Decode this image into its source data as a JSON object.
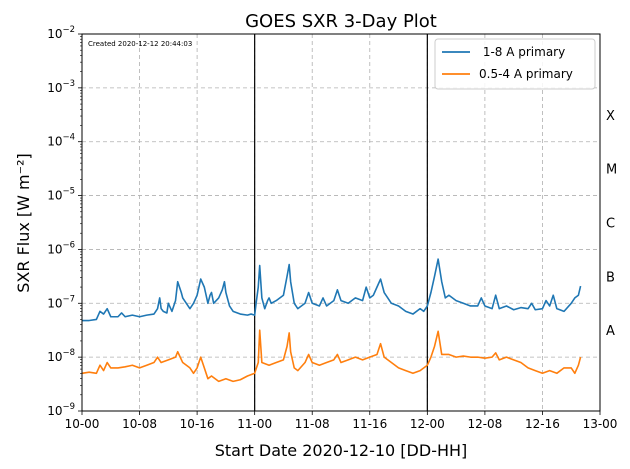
{
  "chart_data": {
    "type": "line",
    "title": "GOES SXR 3-Day Plot",
    "xlabel": "Start Date 2020-12-10 [DD-HH]",
    "ylabel": "SXR Flux [W m⁻²]",
    "created_note": "Created 2020-12-12 20:44:03",
    "yscale": "log",
    "xlim": [
      0,
      72
    ],
    "ylim_exponents": [
      -9,
      -2
    ],
    "grid": true,
    "legend_position": "top-right",
    "x_ticks": [
      {
        "x": 0,
        "label": "10-00"
      },
      {
        "x": 8,
        "label": "10-08"
      },
      {
        "x": 16,
        "label": "10-16"
      },
      {
        "x": 24,
        "label": "11-00"
      },
      {
        "x": 32,
        "label": "11-08"
      },
      {
        "x": 40,
        "label": "11-16"
      },
      {
        "x": 48,
        "label": "12-00"
      },
      {
        "x": 56,
        "label": "12-08"
      },
      {
        "x": 64,
        "label": "12-16"
      },
      {
        "x": 72,
        "label": "13-00"
      }
    ],
    "y_ticks": [
      {
        "exp": -9,
        "base": "10",
        "sup": "−9"
      },
      {
        "exp": -8,
        "base": "10",
        "sup": "−8"
      },
      {
        "exp": -7,
        "base": "10",
        "sup": "−7"
      },
      {
        "exp": -6,
        "base": "10",
        "sup": "−6"
      },
      {
        "exp": -5,
        "base": "10",
        "sup": "−5"
      },
      {
        "exp": -4,
        "base": "10",
        "sup": "−4"
      },
      {
        "exp": -3,
        "base": "10",
        "sup": "−3"
      },
      {
        "exp": -2,
        "base": "10",
        "sup": "−2"
      }
    ],
    "day_boundaries": [
      24,
      48
    ],
    "flare_classes": [
      {
        "label": "A",
        "exp": -7.5
      },
      {
        "label": "B",
        "exp": -6.5
      },
      {
        "label": "C",
        "exp": -5.5
      },
      {
        "label": "M",
        "exp": -4.5
      },
      {
        "label": "X",
        "exp": -3.5
      }
    ],
    "series": [
      {
        "name": " 1-8 A primary",
        "color": "#1f77b4",
        "points": [
          [
            0,
            -7.32
          ],
          [
            1,
            -7.32
          ],
          [
            2,
            -7.3
          ],
          [
            2.5,
            -7.15
          ],
          [
            3,
            -7.2
          ],
          [
            3.5,
            -7.1
          ],
          [
            4,
            -7.25
          ],
          [
            5,
            -7.25
          ],
          [
            5.5,
            -7.18
          ],
          [
            6,
            -7.25
          ],
          [
            7,
            -7.22
          ],
          [
            8,
            -7.25
          ],
          [
            9,
            -7.22
          ],
          [
            10,
            -7.2
          ],
          [
            10.5,
            -7.1
          ],
          [
            10.8,
            -6.9
          ],
          [
            11,
            -7.1
          ],
          [
            11.3,
            -7.15
          ],
          [
            11.8,
            -7.18
          ],
          [
            12,
            -7.0
          ],
          [
            12.5,
            -7.15
          ],
          [
            13,
            -6.95
          ],
          [
            13.3,
            -6.6
          ],
          [
            13.8,
            -6.8
          ],
          [
            14,
            -6.9
          ],
          [
            14.5,
            -7.0
          ],
          [
            15,
            -7.1
          ],
          [
            15.5,
            -7.0
          ],
          [
            16,
            -6.85
          ],
          [
            16.5,
            -6.55
          ],
          [
            17,
            -6.7
          ],
          [
            17.5,
            -7.0
          ],
          [
            17.8,
            -6.85
          ],
          [
            18,
            -6.8
          ],
          [
            18.3,
            -7.0
          ],
          [
            19,
            -6.9
          ],
          [
            19.5,
            -6.75
          ],
          [
            19.8,
            -6.6
          ],
          [
            20,
            -6.8
          ],
          [
            20.5,
            -7.05
          ],
          [
            21,
            -7.15
          ],
          [
            22,
            -7.2
          ],
          [
            23,
            -7.22
          ],
          [
            23.5,
            -7.2
          ],
          [
            24,
            -7.22
          ],
          [
            24.2,
            -7.0
          ],
          [
            24.5,
            -6.7
          ],
          [
            24.7,
            -6.3
          ],
          [
            25,
            -6.9
          ],
          [
            25.4,
            -7.1
          ],
          [
            25.8,
            -6.95
          ],
          [
            26,
            -6.9
          ],
          [
            26.3,
            -7.0
          ],
          [
            27,
            -6.95
          ],
          [
            28,
            -6.85
          ],
          [
            28.5,
            -6.5
          ],
          [
            28.8,
            -6.28
          ],
          [
            29,
            -6.6
          ],
          [
            29.5,
            -7.0
          ],
          [
            30,
            -7.1
          ],
          [
            31,
            -7.0
          ],
          [
            31.5,
            -6.8
          ],
          [
            32,
            -7.0
          ],
          [
            33,
            -7.05
          ],
          [
            33.5,
            -6.9
          ],
          [
            34,
            -7.05
          ],
          [
            35,
            -6.95
          ],
          [
            35.5,
            -6.75
          ],
          [
            36,
            -6.95
          ],
          [
            37,
            -7.0
          ],
          [
            38,
            -6.9
          ],
          [
            39,
            -6.95
          ],
          [
            39.5,
            -6.7
          ],
          [
            40,
            -6.9
          ],
          [
            40.5,
            -6.85
          ],
          [
            41,
            -6.7
          ],
          [
            41.5,
            -6.55
          ],
          [
            42,
            -6.8
          ],
          [
            43,
            -7.0
          ],
          [
            44,
            -7.05
          ],
          [
            45,
            -7.15
          ],
          [
            46,
            -7.2
          ],
          [
            47,
            -7.1
          ],
          [
            47.5,
            -7.15
          ],
          [
            48,
            -7.05
          ],
          [
            48.5,
            -6.8
          ],
          [
            49,
            -6.5
          ],
          [
            49.5,
            -6.18
          ],
          [
            50,
            -6.6
          ],
          [
            50.5,
            -6.9
          ],
          [
            51,
            -6.85
          ],
          [
            52,
            -6.95
          ],
          [
            53,
            -7.0
          ],
          [
            54,
            -7.05
          ],
          [
            55,
            -7.05
          ],
          [
            55.5,
            -6.9
          ],
          [
            56,
            -7.05
          ],
          [
            57,
            -7.1
          ],
          [
            57.5,
            -6.85
          ],
          [
            58,
            -7.1
          ],
          [
            59,
            -7.05
          ],
          [
            60,
            -7.12
          ],
          [
            61,
            -7.08
          ],
          [
            62,
            -7.1
          ],
          [
            62.5,
            -7.0
          ],
          [
            63,
            -7.12
          ],
          [
            64,
            -7.1
          ],
          [
            64.5,
            -6.95
          ],
          [
            65,
            -7.05
          ],
          [
            65.5,
            -6.85
          ],
          [
            66,
            -7.1
          ],
          [
            67,
            -7.15
          ],
          [
            68,
            -7.0
          ],
          [
            68.5,
            -6.9
          ],
          [
            69,
            -6.85
          ],
          [
            69.3,
            -6.68
          ]
        ]
      },
      {
        "name": "0.5-4 A primary",
        "color": "#ff7f0e",
        "points": [
          [
            0,
            -8.3
          ],
          [
            1,
            -8.28
          ],
          [
            2,
            -8.3
          ],
          [
            2.5,
            -8.15
          ],
          [
            3,
            -8.25
          ],
          [
            3.5,
            -8.1
          ],
          [
            4,
            -8.2
          ],
          [
            5,
            -8.2
          ],
          [
            6,
            -8.18
          ],
          [
            7,
            -8.15
          ],
          [
            8,
            -8.2
          ],
          [
            9,
            -8.15
          ],
          [
            10,
            -8.1
          ],
          [
            10.5,
            -8.0
          ],
          [
            11,
            -8.1
          ],
          [
            12,
            -8.05
          ],
          [
            13,
            -8.0
          ],
          [
            13.3,
            -7.9
          ],
          [
            14,
            -8.1
          ],
          [
            15,
            -8.2
          ],
          [
            15.5,
            -8.3
          ],
          [
            16,
            -8.2
          ],
          [
            16.5,
            -8.0
          ],
          [
            17,
            -8.2
          ],
          [
            17.5,
            -8.4
          ],
          [
            18,
            -8.35
          ],
          [
            19,
            -8.45
          ],
          [
            20,
            -8.4
          ],
          [
            21,
            -8.45
          ],
          [
            22,
            -8.42
          ],
          [
            23,
            -8.35
          ],
          [
            24,
            -8.3
          ],
          [
            24.5,
            -8.1
          ],
          [
            24.7,
            -7.5
          ],
          [
            25,
            -8.1
          ],
          [
            26,
            -8.15
          ],
          [
            27,
            -8.1
          ],
          [
            28,
            -8.05
          ],
          [
            28.5,
            -7.8
          ],
          [
            28.8,
            -7.55
          ],
          [
            29,
            -7.9
          ],
          [
            29.5,
            -8.2
          ],
          [
            30,
            -8.25
          ],
          [
            31,
            -8.1
          ],
          [
            31.5,
            -7.95
          ],
          [
            32,
            -8.1
          ],
          [
            33,
            -8.15
          ],
          [
            34,
            -8.1
          ],
          [
            35,
            -8.05
          ],
          [
            35.5,
            -7.95
          ],
          [
            36,
            -8.1
          ],
          [
            37,
            -8.05
          ],
          [
            38,
            -8.0
          ],
          [
            39,
            -8.05
          ],
          [
            40,
            -8.0
          ],
          [
            41,
            -7.95
          ],
          [
            41.5,
            -7.75
          ],
          [
            42,
            -8.0
          ],
          [
            43,
            -8.1
          ],
          [
            44,
            -8.2
          ],
          [
            45,
            -8.25
          ],
          [
            46,
            -8.3
          ],
          [
            47,
            -8.25
          ],
          [
            48,
            -8.15
          ],
          [
            48.5,
            -8.0
          ],
          [
            49,
            -7.8
          ],
          [
            49.5,
            -7.52
          ],
          [
            50,
            -7.95
          ],
          [
            51,
            -7.95
          ],
          [
            52,
            -8.0
          ],
          [
            53,
            -7.98
          ],
          [
            54,
            -8.0
          ],
          [
            55,
            -8.0
          ],
          [
            56,
            -8.02
          ],
          [
            57,
            -8.0
          ],
          [
            57.5,
            -7.92
          ],
          [
            58,
            -8.05
          ],
          [
            59,
            -8.0
          ],
          [
            60,
            -8.05
          ],
          [
            61,
            -8.1
          ],
          [
            62,
            -8.2
          ],
          [
            63,
            -8.25
          ],
          [
            64,
            -8.3
          ],
          [
            65,
            -8.25
          ],
          [
            66,
            -8.3
          ],
          [
            67,
            -8.2
          ],
          [
            68,
            -8.2
          ],
          [
            68.5,
            -8.3
          ],
          [
            69,
            -8.15
          ],
          [
            69.3,
            -8.0
          ]
        ]
      }
    ]
  }
}
